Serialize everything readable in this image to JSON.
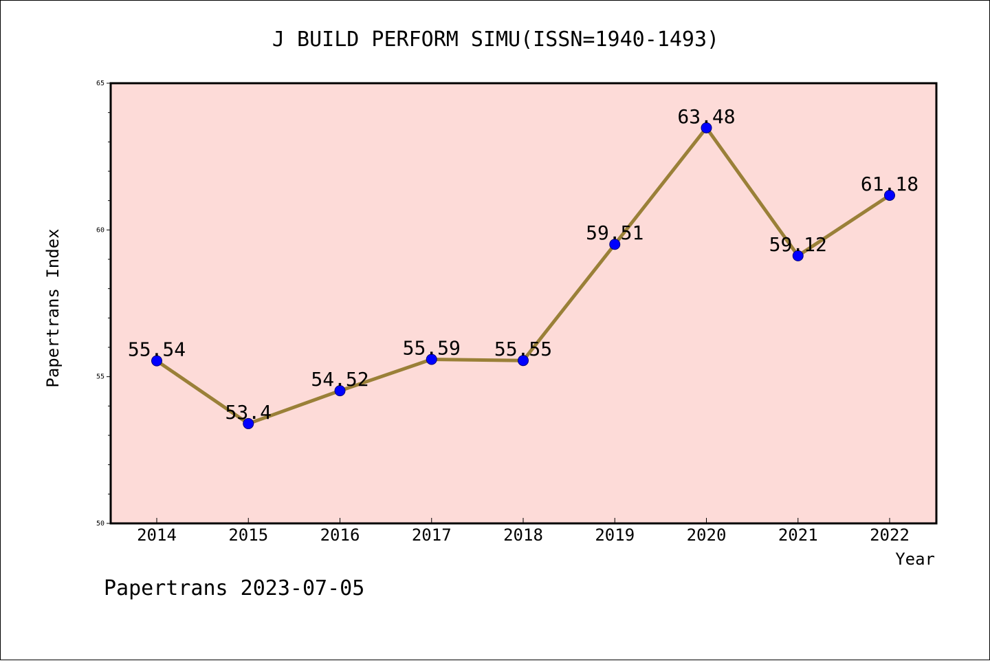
{
  "chart_data": {
    "type": "line",
    "title": "J BUILD PERFORM SIMU(ISSN=1940-1493)",
    "xlabel": "Year",
    "ylabel": "Papertrans Index",
    "footer": "Papertrans 2023-07-05",
    "categories": [
      "2014",
      "2015",
      "2016",
      "2017",
      "2018",
      "2019",
      "2020",
      "2021",
      "2022"
    ],
    "series": [
      {
        "values": [
          55.54,
          53.4,
          54.52,
          55.59,
          55.55,
          59.51,
          63.48,
          59.12,
          61.18
        ],
        "labels": [
          "55.54",
          "53.4",
          "54.52",
          "55.59",
          "55.55",
          "59.51",
          "63.48",
          "59.12",
          "61.18"
        ],
        "line_color": "#9a8038",
        "marker_color": "#0000ff"
      }
    ],
    "ylim": [
      50,
      65
    ],
    "yticks": [
      50,
      55,
      60,
      65
    ],
    "ytick_labels": [
      "50",
      "55",
      "60",
      "65"
    ],
    "y_minor_step": 1,
    "plot_background": "#fddbd8",
    "grid": false,
    "legend": "none"
  }
}
